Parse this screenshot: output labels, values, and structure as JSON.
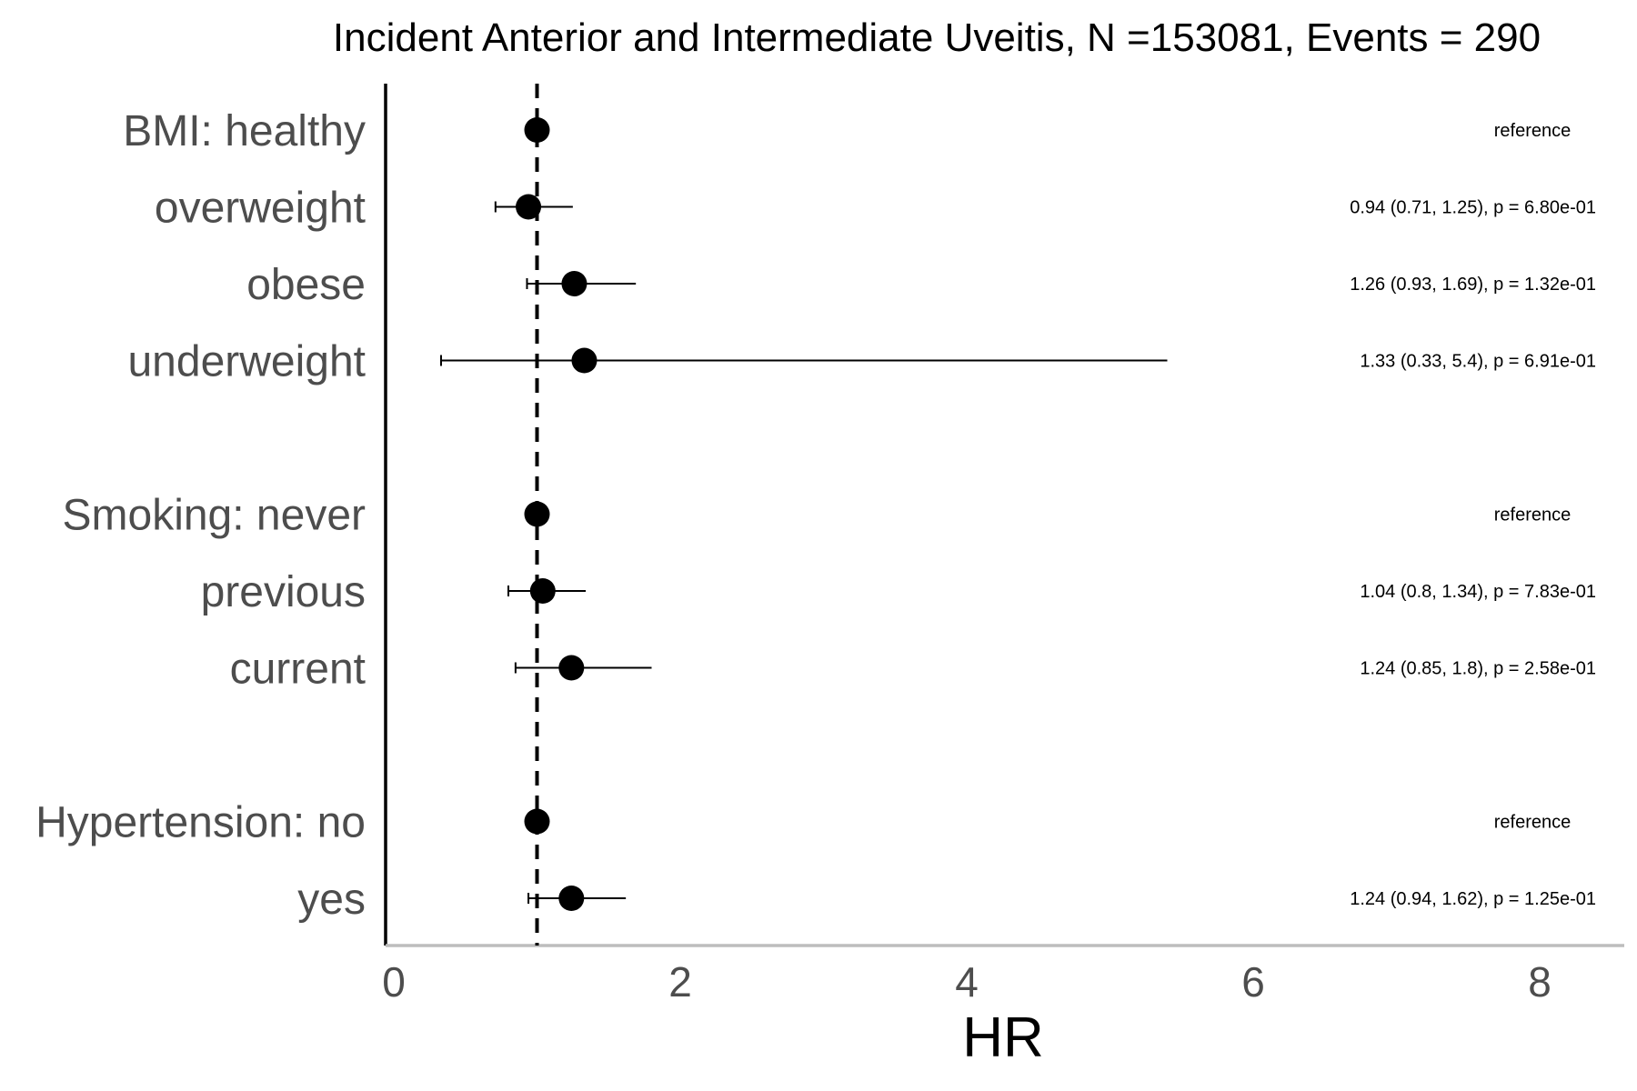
{
  "chart_data": {
    "type": "forest",
    "title": "Incident Anterior and Intermediate Uveitis, N =153081, Events = 290",
    "xlabel": "HR",
    "xlim": [
      0,
      8.6
    ],
    "xticks": [
      0,
      2,
      4,
      6,
      8
    ],
    "reference_line": 1,
    "grid": false,
    "rows": [
      {
        "label": "BMI: healthy",
        "hr": 1.0,
        "lower": null,
        "upper": null,
        "annotation": "reference"
      },
      {
        "label": "overweight",
        "hr": 0.94,
        "lower": 0.71,
        "upper": 1.25,
        "annotation": "0.94 (0.71, 1.25), p = 6.80e-01"
      },
      {
        "label": "obese",
        "hr": 1.26,
        "lower": 0.93,
        "upper": 1.69,
        "annotation": "1.26 (0.93, 1.69), p = 1.32e-01"
      },
      {
        "label": "underweight",
        "hr": 1.33,
        "lower": 0.33,
        "upper": 5.4,
        "annotation": "1.33 (0.33, 5.4), p = 6.91e-01"
      },
      {
        "label": "",
        "hr": null,
        "lower": null,
        "upper": null,
        "annotation": ""
      },
      {
        "label": "Smoking: never",
        "hr": 1.0,
        "lower": null,
        "upper": null,
        "annotation": "reference"
      },
      {
        "label": "previous",
        "hr": 1.04,
        "lower": 0.8,
        "upper": 1.34,
        "annotation": "1.04 (0.8, 1.34), p = 7.83e-01"
      },
      {
        "label": "current",
        "hr": 1.24,
        "lower": 0.85,
        "upper": 1.8,
        "annotation": "1.24 (0.85, 1.8), p = 2.58e-01"
      },
      {
        "label": "",
        "hr": null,
        "lower": null,
        "upper": null,
        "annotation": ""
      },
      {
        "label": "Hypertension: no",
        "hr": 1.0,
        "lower": null,
        "upper": null,
        "annotation": "reference"
      },
      {
        "label": "yes",
        "hr": 1.24,
        "lower": 0.94,
        "upper": 1.62,
        "annotation": "1.24 (0.94, 1.62), p = 1.25e-01"
      }
    ]
  }
}
